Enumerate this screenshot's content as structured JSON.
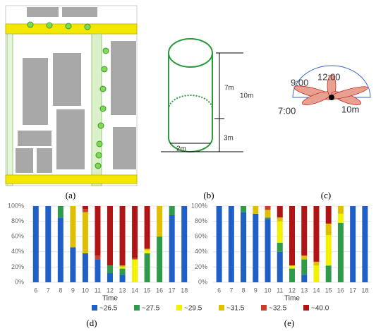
{
  "figure": {
    "panel_labels": [
      "(a)",
      "(b)",
      "(c)",
      "(d)",
      "(e)"
    ],
    "cylinder_labels": [
      "7m",
      "10m",
      "3m",
      "2m"
    ],
    "polar_labels": [
      "9:00",
      "12:00",
      "7:00",
      "10m"
    ]
  },
  "chart_data": [
    {
      "type": "stacked-bar",
      "x_label": "Time",
      "categories": [
        "6",
        "7",
        "8",
        "9",
        "10",
        "11",
        "12",
        "13",
        "14",
        "15",
        "16",
        "17",
        "18"
      ],
      "ylim": [
        0,
        100
      ],
      "yticks": [
        {
          "value": 0,
          "label": "0%"
        },
        {
          "value": 20,
          "label": "20%"
        },
        {
          "value": 40,
          "label": "40%"
        },
        {
          "value": 60,
          "label": "60%"
        },
        {
          "value": 80,
          "label": "80%"
        },
        {
          "value": 100,
          "label": "100%"
        }
      ],
      "grid": true,
      "series": [
        {
          "name": "~26.5",
          "color": "#1f5fc8",
          "values": [
            100,
            100,
            85,
            46,
            38,
            30,
            12,
            10,
            0,
            0,
            0,
            88,
            100
          ]
        },
        {
          "name": "~27.5",
          "color": "#2e9a4a",
          "values": [
            0,
            0,
            15,
            0,
            0,
            0,
            10,
            8,
            0,
            38,
            60,
            12,
            0
          ]
        },
        {
          "name": "~29.5",
          "color": "#f2f200",
          "values": [
            0,
            0,
            0,
            0,
            0,
            0,
            0,
            2,
            30,
            4,
            0,
            0,
            0
          ]
        },
        {
          "name": "~31.5",
          "color": "#e0bf00",
          "values": [
            0,
            0,
            0,
            54,
            54,
            0,
            0,
            2,
            0,
            2,
            40,
            0,
            0
          ]
        },
        {
          "name": "~32.5",
          "color": "#c8402c",
          "values": [
            0,
            0,
            0,
            0,
            4,
            5,
            0,
            0,
            2,
            0,
            0,
            0,
            0
          ]
        },
        {
          "name": "~40.0",
          "color": "#b01414",
          "values": [
            0,
            0,
            0,
            0,
            4,
            65,
            78,
            78,
            68,
            56,
            0,
            0,
            0
          ]
        }
      ]
    },
    {
      "type": "stacked-bar",
      "x_label": "Time",
      "categories": [
        "6",
        "7",
        "8",
        "9",
        "10",
        "11",
        "12",
        "13",
        "14",
        "15",
        "16",
        "17",
        "18"
      ],
      "ylim": [
        0,
        100
      ],
      "yticks": [
        {
          "value": 0,
          "label": "0%"
        },
        {
          "value": 20,
          "label": "20%"
        },
        {
          "value": 40,
          "label": "40%"
        },
        {
          "value": 60,
          "label": "60%"
        },
        {
          "value": 80,
          "label": "80%"
        },
        {
          "value": 100,
          "label": "100%"
        }
      ],
      "grid": true,
      "series": [
        {
          "name": "~26.5",
          "color": "#1f5fc8",
          "values": [
            100,
            100,
            92,
            90,
            83,
            40,
            0,
            10,
            0,
            0,
            0,
            100,
            100
          ]
        },
        {
          "name": "~27.5",
          "color": "#2e9a4a",
          "values": [
            0,
            0,
            8,
            0,
            2,
            12,
            18,
            20,
            0,
            22,
            78,
            0,
            0
          ]
        },
        {
          "name": "~29.5",
          "color": "#f2f200",
          "values": [
            0,
            0,
            0,
            0,
            0,
            28,
            4,
            0,
            22,
            40,
            12,
            0,
            0
          ]
        },
        {
          "name": "~31.5",
          "color": "#e0bf00",
          "values": [
            0,
            0,
            0,
            10,
            10,
            5,
            0,
            5,
            5,
            15,
            10,
            0,
            0
          ]
        },
        {
          "name": "~32.5",
          "color": "#c8402c",
          "values": [
            0,
            0,
            0,
            0,
            5,
            0,
            0,
            0,
            0,
            0,
            0,
            0,
            0
          ]
        },
        {
          "name": "~40.0",
          "color": "#b01414",
          "values": [
            0,
            0,
            0,
            0,
            0,
            15,
            78,
            65,
            73,
            23,
            0,
            0,
            0
          ]
        }
      ]
    }
  ]
}
